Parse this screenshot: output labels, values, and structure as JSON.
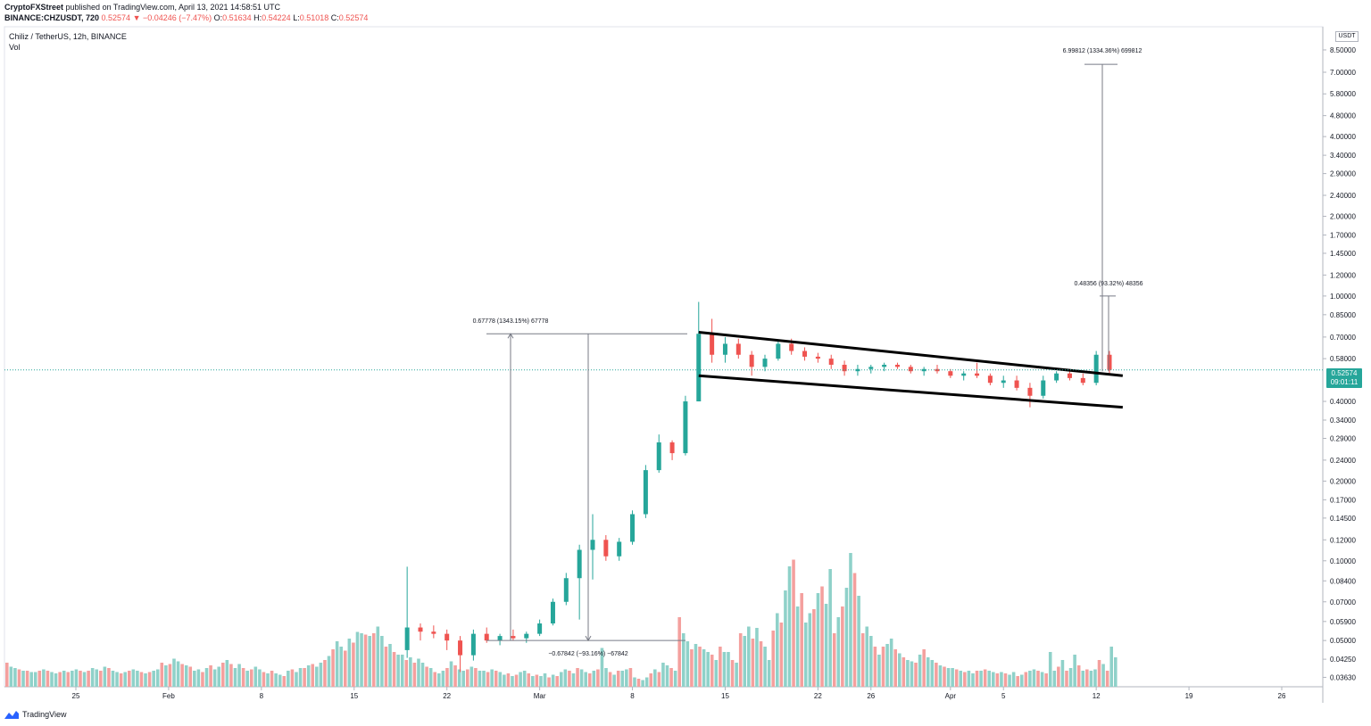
{
  "header": {
    "author": "CryptoFXStreet",
    "published_text": "published on TradingView.com, April 13, 2021 14:58:51 UTC",
    "symbol_code": "BINANCE:CHZUSDT, 720",
    "last": "0.52574",
    "change": "▼ −0.04246 (−7.47%)",
    "o_label": "O:",
    "o_value": "0.51634",
    "h_label": "H:",
    "h_value": "0.54224",
    "l_label": "L:",
    "l_value": "0.51018",
    "c_label": "C:",
    "c_value": "0.52574",
    "title": "Chiliz / TetherUS, 12h, BINANCE",
    "vol_label": "Vol"
  },
  "price_tag": {
    "price": "0.52574",
    "countdown": "09:01:11"
  },
  "currency": "USDT",
  "footer": {
    "brand": "TradingView"
  },
  "colors": {
    "up": "#26a69a",
    "down": "#ef5350",
    "vol_up": "#8fd1c9",
    "vol_down": "#f4a09e",
    "channel": "#000000"
  },
  "chart_data": {
    "type": "candlestick",
    "title": "Chiliz / TetherUS, 12h, BINANCE",
    "y_scale": "log",
    "y_range": [
      0.0345,
      10.0
    ],
    "y_ticks": [
      "8.50000",
      "7.00000",
      "5.80000",
      "4.80000",
      "4.00000",
      "3.40000",
      "2.90000",
      "2.40000",
      "2.00000",
      "1.70000",
      "1.45000",
      "1.20000",
      "1.00000",
      "0.85000",
      "0.70000",
      "0.58000",
      "0.40000",
      "0.34000",
      "0.29000",
      "0.24000",
      "0.20000",
      "0.17000",
      "0.14500",
      "0.12000",
      "0.10000",
      "0.08400",
      "0.07000",
      "0.05900",
      "0.05000",
      "0.04250",
      "0.03630"
    ],
    "y_ticks_values": [
      8.5,
      7.0,
      5.8,
      4.8,
      4.0,
      3.4,
      2.9,
      2.4,
      2.0,
      1.7,
      1.45,
      1.2,
      1.0,
      0.85,
      0.7,
      0.58,
      0.4,
      0.34,
      0.29,
      0.24,
      0.2,
      0.17,
      0.145,
      0.12,
      0.1,
      0.084,
      0.07,
      0.059,
      0.05,
      0.0425,
      0.0363
    ],
    "x_ticks": [
      {
        "label": "25",
        "x": "2021-01-25"
      },
      {
        "label": "Feb",
        "x": "2021-02-01"
      },
      {
        "label": "8",
        "x": "2021-02-08"
      },
      {
        "label": "15",
        "x": "2021-02-15"
      },
      {
        "label": "22",
        "x": "2021-02-22"
      },
      {
        "label": "Mar",
        "x": "2021-03-01"
      },
      {
        "label": "8",
        "x": "2021-03-08"
      },
      {
        "label": "15",
        "x": "2021-03-15"
      },
      {
        "label": "22",
        "x": "2021-03-22"
      },
      {
        "label": "26",
        "x": "2021-03-26"
      },
      {
        "label": "Apr",
        "x": "2021-04-01"
      },
      {
        "label": "5",
        "x": "2021-04-05"
      },
      {
        "label": "12",
        "x": "2021-04-12"
      },
      {
        "label": "19",
        "x": "2021-04-19"
      },
      {
        "label": "26",
        "x": "2021-04-26"
      }
    ],
    "current_price": 0.52574,
    "candles": [
      {
        "d": "2021-02-19",
        "o": 0.046,
        "h": 0.095,
        "l": 0.043,
        "c": 0.056
      },
      {
        "d": "2021-02-20",
        "o": 0.056,
        "h": 0.058,
        "l": 0.05,
        "c": 0.054
      },
      {
        "d": "2021-02-21",
        "o": 0.054,
        "h": 0.057,
        "l": 0.051,
        "c": 0.053
      },
      {
        "d": "2021-02-22",
        "o": 0.053,
        "h": 0.055,
        "l": 0.046,
        "c": 0.05
      },
      {
        "d": "2021-02-23",
        "o": 0.05,
        "h": 0.052,
        "l": 0.038,
        "c": 0.044
      },
      {
        "d": "2021-02-24",
        "o": 0.044,
        "h": 0.055,
        "l": 0.042,
        "c": 0.053
      },
      {
        "d": "2021-02-25",
        "o": 0.053,
        "h": 0.056,
        "l": 0.049,
        "c": 0.05
      },
      {
        "d": "2021-02-26",
        "o": 0.05,
        "h": 0.053,
        "l": 0.048,
        "c": 0.052
      },
      {
        "d": "2021-02-27",
        "o": 0.052,
        "h": 0.055,
        "l": 0.05,
        "c": 0.051
      },
      {
        "d": "2021-02-28",
        "o": 0.051,
        "h": 0.054,
        "l": 0.049,
        "c": 0.053
      },
      {
        "d": "2021-03-01",
        "o": 0.053,
        "h": 0.06,
        "l": 0.052,
        "c": 0.058
      },
      {
        "d": "2021-03-02",
        "o": 0.058,
        "h": 0.072,
        "l": 0.057,
        "c": 0.07
      },
      {
        "d": "2021-03-03",
        "o": 0.07,
        "h": 0.09,
        "l": 0.068,
        "c": 0.086
      },
      {
        "d": "2021-03-04",
        "o": 0.086,
        "h": 0.115,
        "l": 0.06,
        "c": 0.11
      },
      {
        "d": "2021-03-05",
        "o": 0.11,
        "h": 0.15,
        "l": 0.085,
        "c": 0.12
      },
      {
        "d": "2021-03-06",
        "o": 0.12,
        "h": 0.125,
        "l": 0.1,
        "c": 0.104
      },
      {
        "d": "2021-03-07",
        "o": 0.104,
        "h": 0.122,
        "l": 0.1,
        "c": 0.118
      },
      {
        "d": "2021-03-08",
        "o": 0.118,
        "h": 0.155,
        "l": 0.115,
        "c": 0.15
      },
      {
        "d": "2021-03-09",
        "o": 0.15,
        "h": 0.23,
        "l": 0.145,
        "c": 0.22
      },
      {
        "d": "2021-03-10",
        "o": 0.22,
        "h": 0.3,
        "l": 0.215,
        "c": 0.28
      },
      {
        "d": "2021-03-11",
        "o": 0.28,
        "h": 0.285,
        "l": 0.24,
        "c": 0.255
      },
      {
        "d": "2021-03-12",
        "o": 0.255,
        "h": 0.42,
        "l": 0.25,
        "c": 0.4
      },
      {
        "d": "2021-03-13",
        "o": 0.4,
        "h": 0.95,
        "l": 0.4,
        "c": 0.72
      },
      {
        "d": "2021-03-14",
        "o": 0.72,
        "h": 0.82,
        "l": 0.56,
        "c": 0.6
      },
      {
        "d": "2021-03-15",
        "o": 0.6,
        "h": 0.7,
        "l": 0.56,
        "c": 0.66
      },
      {
        "d": "2021-03-16",
        "o": 0.66,
        "h": 0.69,
        "l": 0.58,
        "c": 0.6
      },
      {
        "d": "2021-03-17",
        "o": 0.6,
        "h": 0.62,
        "l": 0.5,
        "c": 0.54
      },
      {
        "d": "2021-03-18",
        "o": 0.54,
        "h": 0.6,
        "l": 0.52,
        "c": 0.58
      },
      {
        "d": "2021-03-19",
        "o": 0.58,
        "h": 0.68,
        "l": 0.57,
        "c": 0.66
      },
      {
        "d": "2021-03-20",
        "o": 0.66,
        "h": 0.69,
        "l": 0.6,
        "c": 0.62
      },
      {
        "d": "2021-03-21",
        "o": 0.62,
        "h": 0.64,
        "l": 0.57,
        "c": 0.59
      },
      {
        "d": "2021-03-22",
        "o": 0.59,
        "h": 0.61,
        "l": 0.56,
        "c": 0.58
      },
      {
        "d": "2021-03-23",
        "o": 0.58,
        "h": 0.6,
        "l": 0.53,
        "c": 0.55
      },
      {
        "d": "2021-03-24",
        "o": 0.55,
        "h": 0.57,
        "l": 0.5,
        "c": 0.52
      },
      {
        "d": "2021-03-25",
        "o": 0.52,
        "h": 0.55,
        "l": 0.5,
        "c": 0.53
      },
      {
        "d": "2021-03-26",
        "o": 0.53,
        "h": 0.55,
        "l": 0.51,
        "c": 0.54
      },
      {
        "d": "2021-03-27",
        "o": 0.54,
        "h": 0.56,
        "l": 0.52,
        "c": 0.55
      },
      {
        "d": "2021-03-28",
        "o": 0.55,
        "h": 0.56,
        "l": 0.53,
        "c": 0.54
      },
      {
        "d": "2021-03-29",
        "o": 0.54,
        "h": 0.55,
        "l": 0.51,
        "c": 0.52
      },
      {
        "d": "2021-03-30",
        "o": 0.52,
        "h": 0.54,
        "l": 0.5,
        "c": 0.53
      },
      {
        "d": "2021-03-31",
        "o": 0.53,
        "h": 0.55,
        "l": 0.51,
        "c": 0.52
      },
      {
        "d": "2021-04-01",
        "o": 0.52,
        "h": 0.53,
        "l": 0.49,
        "c": 0.5
      },
      {
        "d": "2021-04-02",
        "o": 0.5,
        "h": 0.52,
        "l": 0.48,
        "c": 0.51
      },
      {
        "d": "2021-04-03",
        "o": 0.51,
        "h": 0.56,
        "l": 0.49,
        "c": 0.5
      },
      {
        "d": "2021-04-04",
        "o": 0.5,
        "h": 0.51,
        "l": 0.46,
        "c": 0.47
      },
      {
        "d": "2021-04-05",
        "o": 0.47,
        "h": 0.5,
        "l": 0.45,
        "c": 0.48
      },
      {
        "d": "2021-04-06",
        "o": 0.48,
        "h": 0.5,
        "l": 0.44,
        "c": 0.45
      },
      {
        "d": "2021-04-07",
        "o": 0.45,
        "h": 0.47,
        "l": 0.38,
        "c": 0.42
      },
      {
        "d": "2021-04-08",
        "o": 0.42,
        "h": 0.5,
        "l": 0.41,
        "c": 0.48
      },
      {
        "d": "2021-04-09",
        "o": 0.48,
        "h": 0.52,
        "l": 0.47,
        "c": 0.51
      },
      {
        "d": "2021-04-10",
        "o": 0.51,
        "h": 0.53,
        "l": 0.48,
        "c": 0.49
      },
      {
        "d": "2021-04-11",
        "o": 0.49,
        "h": 0.51,
        "l": 0.46,
        "c": 0.47
      },
      {
        "d": "2021-04-12",
        "o": 0.47,
        "h": 0.62,
        "l": 0.46,
        "c": 0.6
      },
      {
        "d": "2021-04-13",
        "o": 0.6,
        "h": 0.62,
        "l": 0.51,
        "c": 0.526
      }
    ],
    "volume_levels": [
      0.18,
      0.15,
      0.14,
      0.13,
      0.12,
      0.12,
      0.11,
      0.11,
      0.12,
      0.13,
      0.12,
      0.11,
      0.1,
      0.11,
      0.12,
      0.11,
      0.12,
      0.13,
      0.12,
      0.11,
      0.12,
      0.14,
      0.13,
      0.12,
      0.15,
      0.14,
      0.12,
      0.11,
      0.1,
      0.11,
      0.12,
      0.13,
      0.12,
      0.11,
      0.1,
      0.11,
      0.12,
      0.13,
      0.18,
      0.16,
      0.17,
      0.21,
      0.19,
      0.17,
      0.16,
      0.15,
      0.12,
      0.13,
      0.11,
      0.14,
      0.16,
      0.13,
      0.15,
      0.18,
      0.2,
      0.17,
      0.14,
      0.17,
      0.14,
      0.12,
      0.13,
      0.15,
      0.13,
      0.11,
      0.1,
      0.12,
      0.1,
      0.09,
      0.08,
      0.12,
      0.13,
      0.11,
      0.14,
      0.14,
      0.16,
      0.17,
      0.15,
      0.18,
      0.2,
      0.23,
      0.28,
      0.34,
      0.3,
      0.27,
      0.36,
      0.33,
      0.41,
      0.4,
      0.39,
      0.38,
      0.4,
      0.45,
      0.38,
      0.3,
      0.32,
      0.26,
      0.24,
      0.24,
      0.2,
      0.22,
      0.18,
      0.21,
      0.18,
      0.15,
      0.14,
      0.11,
      0.1,
      0.12,
      0.14,
      0.19,
      0.16,
      0.13,
      0.12,
      0.13,
      0.15,
      0.14,
      0.12,
      0.12,
      0.11,
      0.13,
      0.12,
      0.11,
      0.09,
      0.1,
      0.08,
      0.09,
      0.11,
      0.12,
      0.1,
      0.08,
      0.09,
      0.08,
      0.1,
      0.07,
      0.09,
      0.08,
      0.11,
      0.13,
      0.12,
      0.1,
      0.14,
      0.13,
      0.11,
      0.1,
      0.12,
      0.13,
      0.29,
      0.14,
      0.11,
      0.09,
      0.12,
      0.12,
      0.13,
      0.14,
      0.07,
      0.06,
      0.05,
      0.07,
      0.1,
      0.13,
      0.11,
      0.18,
      0.16,
      0.14,
      0.12,
      0.52,
      0.4,
      0.34,
      0.28,
      0.32,
      0.3,
      0.28,
      0.26,
      0.24,
      0.2,
      0.3,
      0.26,
      0.26,
      0.2,
      0.18,
      0.4,
      0.38,
      0.45,
      0.36,
      0.44,
      0.34,
      0.3,
      0.2,
      0.42,
      0.55,
      0.48,
      0.72,
      0.9,
      0.95,
      0.6,
      0.7,
      0.48,
      0.55,
      0.58,
      0.7,
      0.75,
      0.62,
      0.88,
      0.4,
      0.52,
      0.6,
      0.74,
      1.0,
      0.85,
      0.68,
      0.4,
      0.45,
      0.38,
      0.3,
      0.24,
      0.3,
      0.32,
      0.36,
      0.28,
      0.25,
      0.22,
      0.2,
      0.19,
      0.18,
      0.24,
      0.28,
      0.22,
      0.2,
      0.18,
      0.16,
      0.15,
      0.14,
      0.14,
      0.13,
      0.12,
      0.11,
      0.12,
      0.1,
      0.12,
      0.12,
      0.13,
      0.12,
      0.11,
      0.1,
      0.11,
      0.1,
      0.09,
      0.11,
      0.08,
      0.09,
      0.11,
      0.12,
      0.13,
      0.12,
      0.11,
      0.1,
      0.26,
      0.12,
      0.15,
      0.2,
      0.12,
      0.14,
      0.24,
      0.16,
      0.12,
      0.13,
      0.12,
      0.13,
      0.2,
      0.17,
      0.12,
      0.3,
      0.22
    ],
    "channel": {
      "upper": [
        {
          "x": "2021-03-13",
          "y": 0.73
        },
        {
          "x": "2021-04-14",
          "y": 0.5
        }
      ],
      "lower": [
        {
          "x": "2021-03-13",
          "y": 0.5
        },
        {
          "x": "2021-04-14",
          "y": 0.38
        }
      ]
    },
    "annotations": [
      {
        "text": "0.67778 (1343.15%) 67778"
      },
      {
        "text": "−0.67842 (−93.16%) −67842"
      },
      {
        "text": "0.48356 (93.32%) 48356"
      },
      {
        "text": "6.99812 (1334.36%) 699812"
      }
    ]
  }
}
